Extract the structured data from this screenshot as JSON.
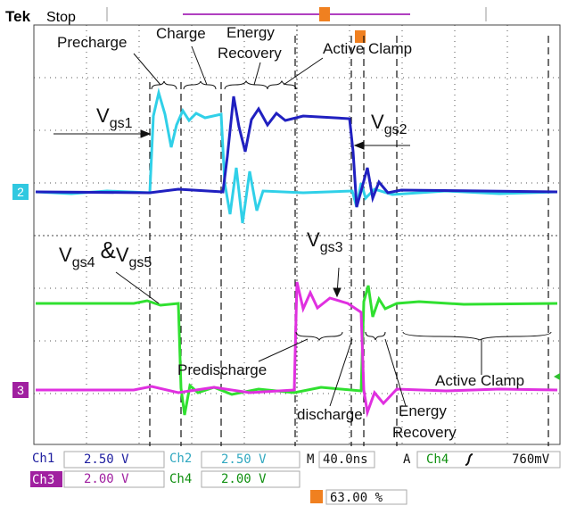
{
  "header": {
    "brand": "Tek",
    "state": "Stop"
  },
  "annotations": {
    "precharge": "Precharge",
    "charge": "Charge",
    "energy_recovery_top": [
      "Energy",
      "Recovery"
    ],
    "active_clamp_top": "Active Clamp",
    "vgs1": {
      "main": "V",
      "sub": "gs1"
    },
    "vgs2": {
      "main": "V",
      "sub": "gs2"
    },
    "vgs3": {
      "main": "V",
      "sub": "gs3"
    },
    "vgs45": {
      "main1": "V",
      "sub1": "gs4",
      "amp": "&",
      "main2": "V",
      "sub2": "gs5"
    },
    "predischarge": "Predischarge",
    "discharge": "discharge",
    "energy_recovery_bottom": [
      "Energy",
      "Recovery"
    ],
    "active_clamp_bottom": "Active Clamp"
  },
  "markers": {
    "ch2": "2",
    "ch3": "3"
  },
  "status": {
    "row1": [
      "Ch1",
      "2.50 V",
      "Ch2",
      "2.50 V",
      "M",
      "40.0ns",
      "A",
      "Ch4",
      "760mV"
    ],
    "row2": [
      "Ch3",
      "2.00 V",
      "Ch4",
      "2.00 V"
    ],
    "trigger_pos": "63.00 %"
  }
}
